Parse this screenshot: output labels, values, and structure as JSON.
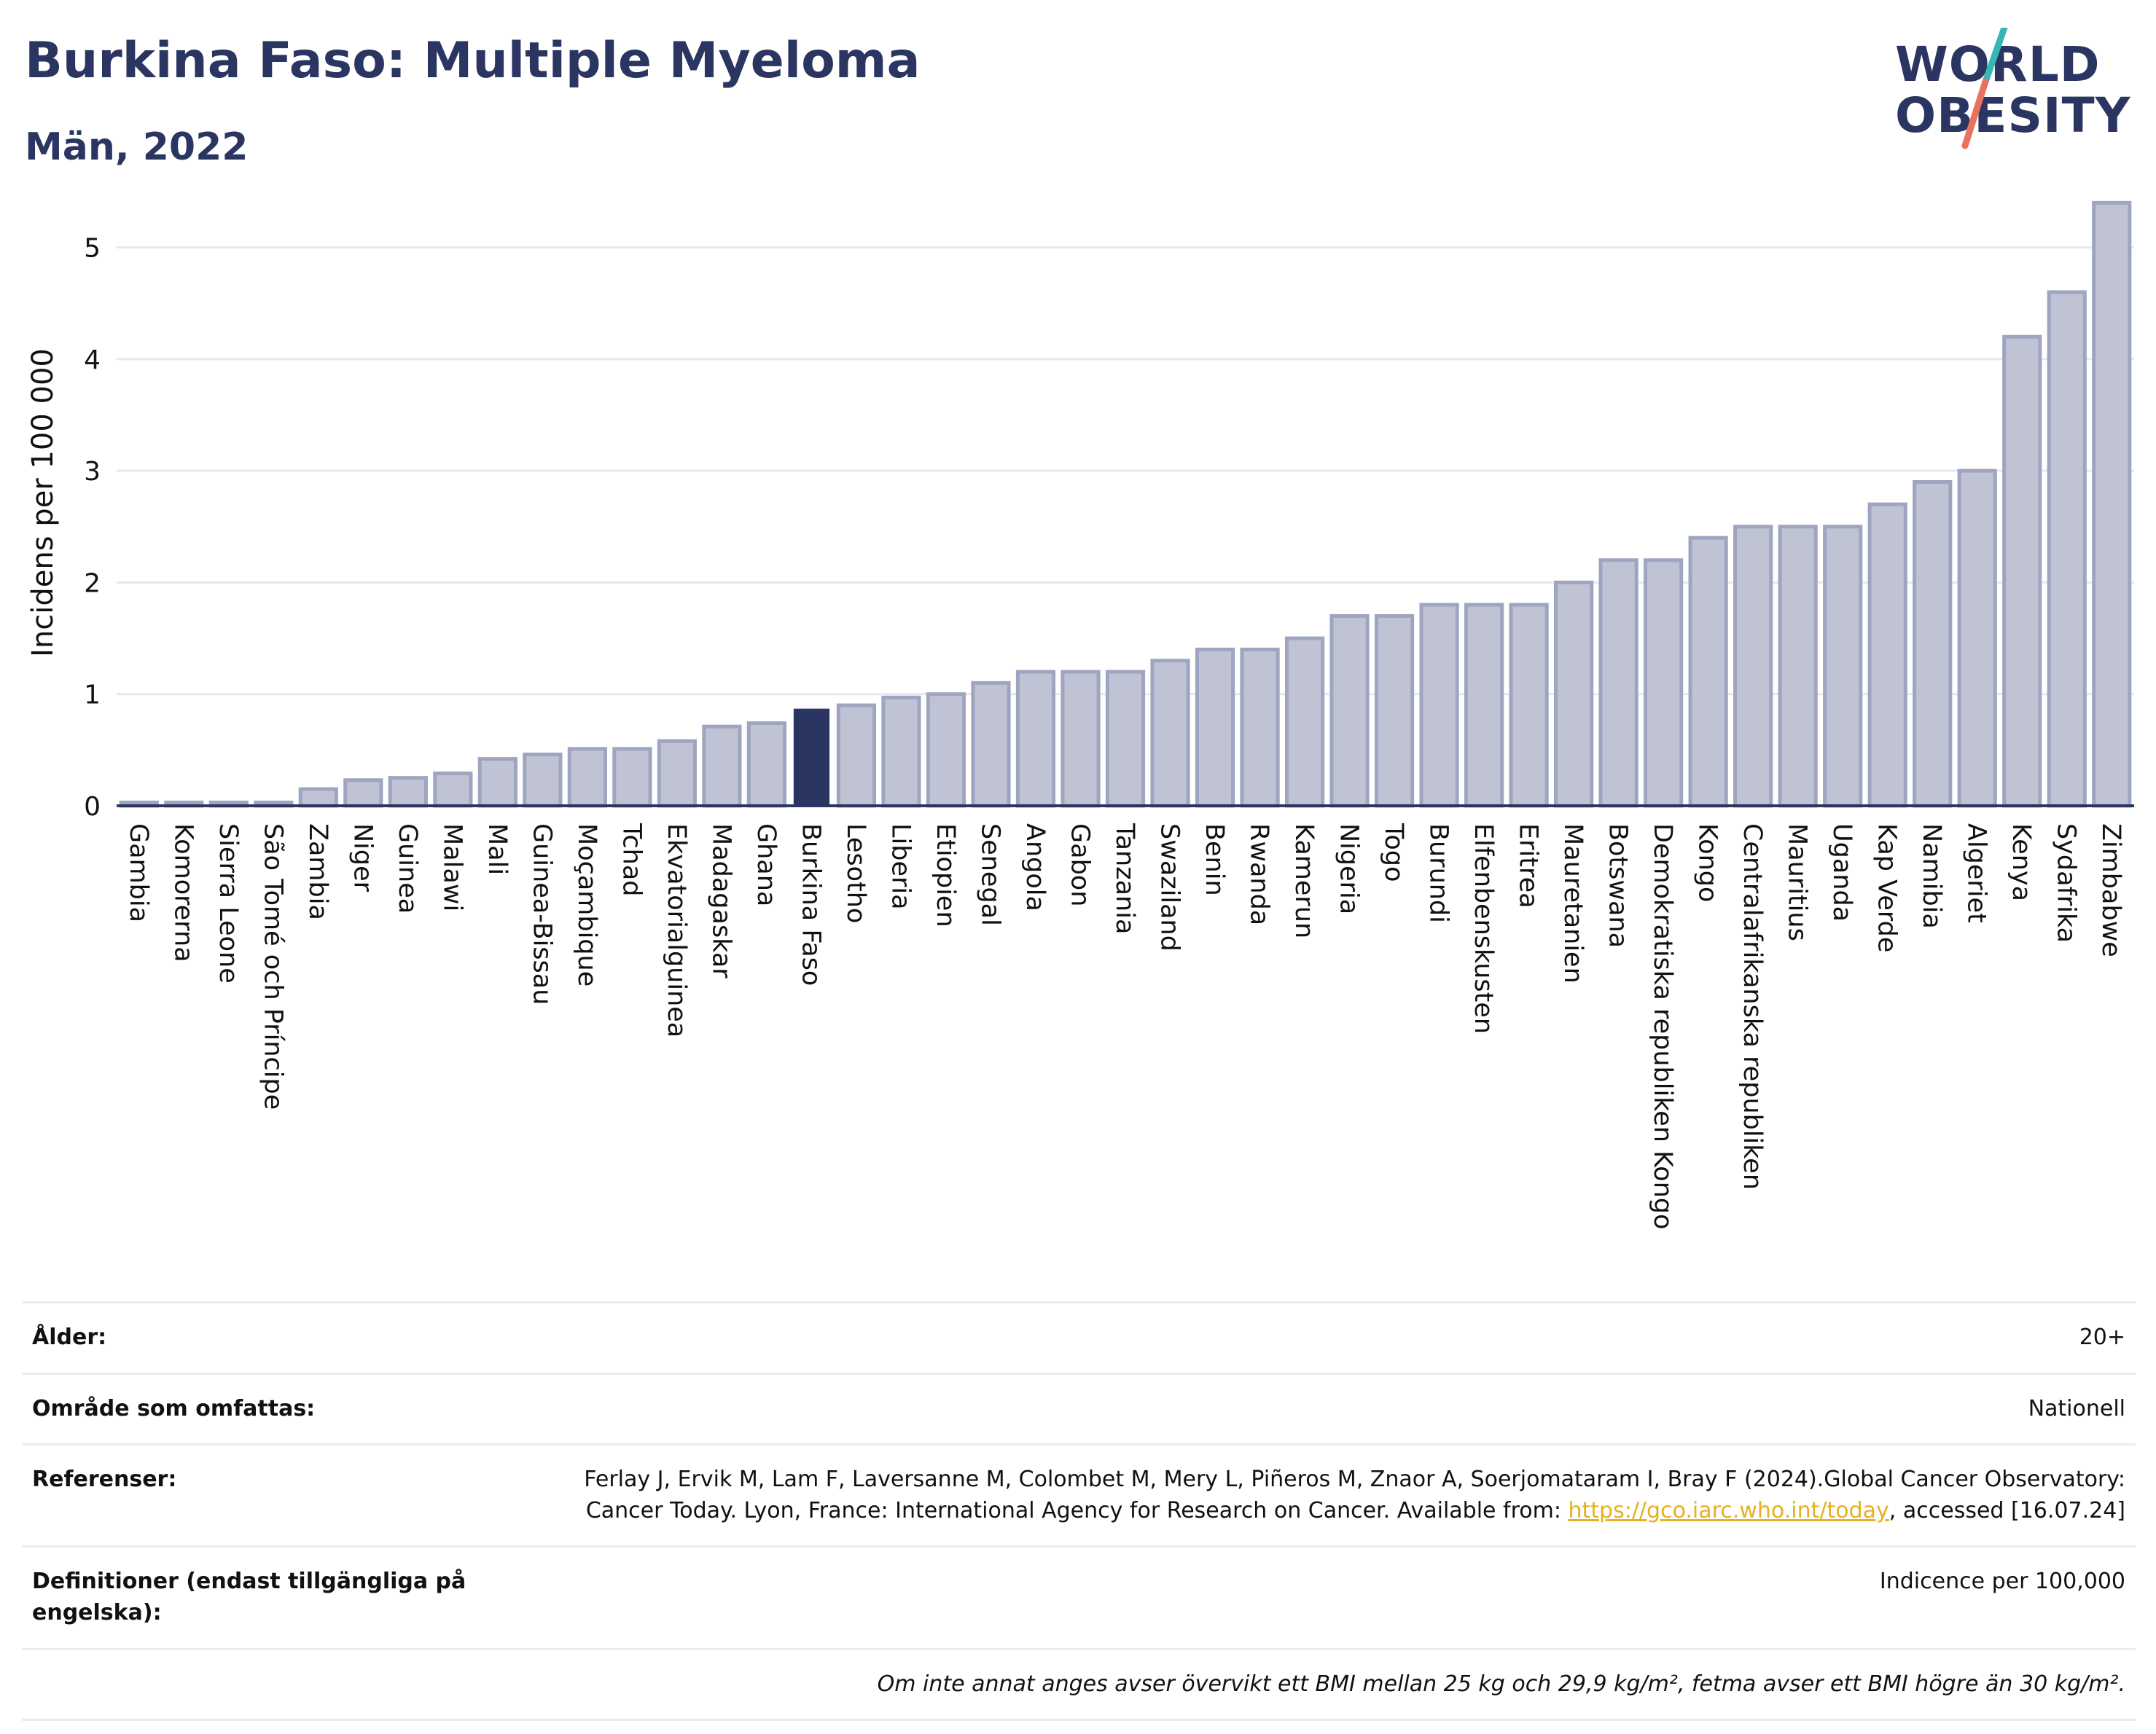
{
  "header": {
    "title": "Burkina Faso: Multiple Myeloma",
    "subtitle": "Män, 2022"
  },
  "logo": {
    "line1": "WORLD",
    "line2": "OBESITY",
    "colors": {
      "text": "#2b3561",
      "slash_top": "#35b8b4",
      "slash_bottom": "#e8715f"
    }
  },
  "colors": {
    "bar": "#bfc3d3",
    "bar_border": "#9ea5c1",
    "highlight": "#2b3561",
    "grid": "#e6e8ef",
    "axis": "#2b3561"
  },
  "chart_data": {
    "type": "bar",
    "ylabel": "Incidens per 100 000",
    "xlabel": "",
    "ylim": [
      0,
      5.5
    ],
    "yticks": [
      0,
      1,
      2,
      3,
      4,
      5
    ],
    "grid": true,
    "highlight": "Burkina Faso",
    "categories": [
      "Gambia",
      "Komorerna",
      "Sierra Leone",
      "São Tomé och Príncipe",
      "Zambia",
      "Niger",
      "Guinea",
      "Malawi",
      "Mali",
      "Guinea-Bissau",
      "Moçambique",
      "Tchad",
      "Ekvatorialguinea",
      "Madagaskar",
      "Ghana",
      "Burkina Faso",
      "Lesotho",
      "Liberia",
      "Etiopien",
      "Senegal",
      "Angola",
      "Gabon",
      "Tanzania",
      "Swaziland",
      "Benin",
      "Rwanda",
      "Kamerun",
      "Nigeria",
      "Togo",
      "Burundi",
      "Elfenbenskusten",
      "Eritrea",
      "Mauretanien",
      "Botswana",
      "Demokratiska republiken Kongo",
      "Kongo",
      "Centralafrikanska republiken",
      "Mauritius",
      "Uganda",
      "Kap Verde",
      "Namibia",
      "Algeriet",
      "Kenya",
      "Sydafrika",
      "Zimbabwe"
    ],
    "values": [
      0.03,
      0.03,
      0.03,
      0.03,
      0.15,
      0.23,
      0.25,
      0.29,
      0.42,
      0.46,
      0.51,
      0.51,
      0.58,
      0.71,
      0.74,
      0.87,
      0.9,
      0.97,
      1.0,
      1.1,
      1.2,
      1.2,
      1.2,
      1.3,
      1.4,
      1.4,
      1.5,
      1.7,
      1.7,
      1.8,
      1.8,
      1.8,
      2.0,
      2.2,
      2.2,
      2.4,
      2.5,
      2.5,
      2.5,
      2.7,
      2.9,
      3.0,
      4.2,
      4.6,
      5.4
    ]
  },
  "info": {
    "age_label": "Ålder:",
    "age_value": "20+",
    "area_label": "Område som omfattas:",
    "area_value": "Nationell",
    "ref_label": "Referenser:",
    "ref_text_1": "Ferlay J, Ervik M, Lam F, Laversanne M, Colombet M, Mery L, Piñeros M, Znaor A, Soerjomataram I, Bray F (2024).Global Cancer Observatory: Cancer Today. Lyon, France: International Agency for Research on Cancer. Available from: ",
    "ref_link": "https://gco.iarc.who.int/today",
    "ref_text_2": ", accessed [16.07.24]",
    "def_label": "Definitioner (endast tillgängliga på engelska):",
    "def_value": "Indicence per 100,000",
    "note": "Om inte annat anges avser övervikt ett BMI mellan 25 kg och 29,9 kg/m², fetma avser ett BMI högre än 30 kg/m²."
  }
}
